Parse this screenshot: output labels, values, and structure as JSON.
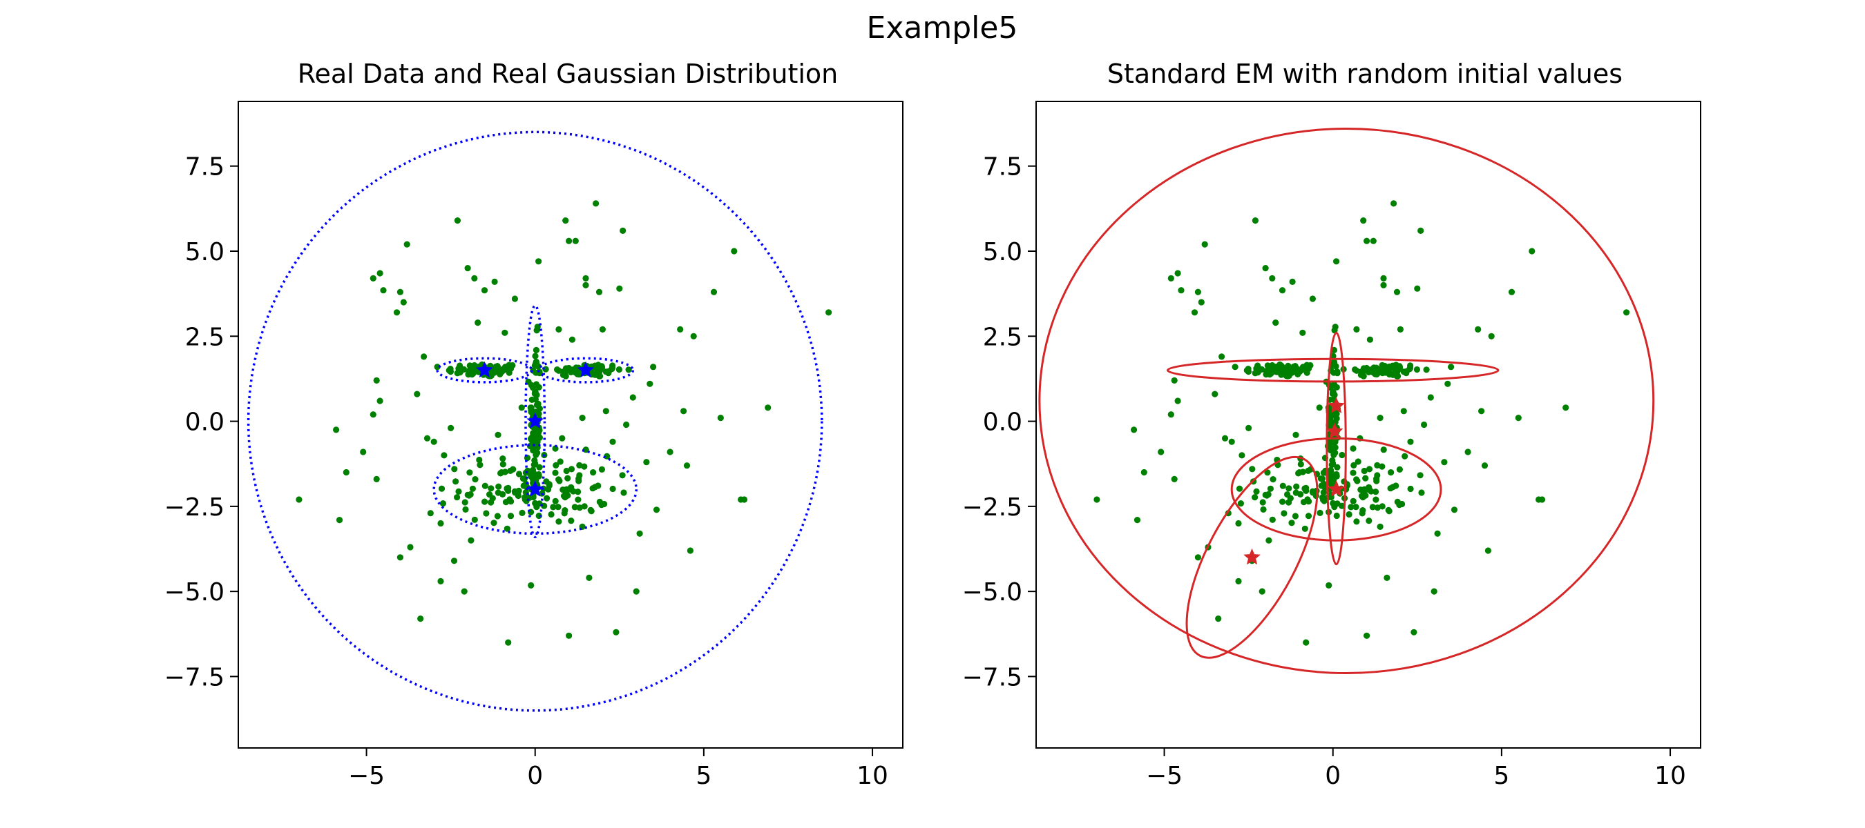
{
  "figure": {
    "title": "Example5"
  },
  "chart_data": [
    {
      "type": "scatter",
      "title": "Real Data and Real Gaussian Distribution",
      "xlabel": "",
      "ylabel": "",
      "xlim": [
        -8.8,
        10.9
      ],
      "ylim": [
        -9.6,
        9.4
      ],
      "xticks": [
        -5,
        0,
        5,
        10
      ],
      "xtick_labels": [
        "−5",
        "0",
        "5",
        "10"
      ],
      "yticks": [
        7.5,
        5.0,
        2.5,
        0.0,
        -2.5,
        -5.0,
        -7.5
      ],
      "ytick_labels": [
        "7.5",
        "5.0",
        "2.5",
        "0.0",
        "−2.5",
        "−5.0",
        "−7.5"
      ],
      "point_color": "#008000",
      "ellipse_style": "dotted",
      "ellipse_color": "#0000ff",
      "marker_color": "#0000ff",
      "ellipses": [
        {
          "cx": 0,
          "cy": 0,
          "rx": 8.5,
          "ry": 8.5,
          "angle": 0
        },
        {
          "cx": -1.5,
          "cy": 1.5,
          "rx": 1.4,
          "ry": 0.35,
          "angle": 0
        },
        {
          "cx": 1.5,
          "cy": 1.5,
          "rx": 1.4,
          "ry": 0.35,
          "angle": 0
        },
        {
          "cx": 0,
          "cy": 0,
          "rx": 0.28,
          "ry": 3.4,
          "angle": 0
        },
        {
          "cx": 0,
          "cy": -2,
          "rx": 3.0,
          "ry": 1.3,
          "angle": 0
        }
      ],
      "markers": [
        [
          -1.5,
          1.5
        ],
        [
          1.5,
          1.5
        ],
        [
          0,
          0
        ],
        [
          0,
          -2
        ]
      ]
    },
    {
      "type": "scatter",
      "title": "Standard EM with random initial values",
      "xlabel": "",
      "ylabel": "",
      "xlim": [
        -8.8,
        10.9
      ],
      "ylim": [
        -9.6,
        9.4
      ],
      "xticks": [
        -5,
        0,
        5,
        10
      ],
      "xtick_labels": [
        "−5",
        "0",
        "5",
        "10"
      ],
      "yticks": [
        7.5,
        5.0,
        2.5,
        0.0,
        -2.5,
        -5.0,
        -7.5
      ],
      "ytick_labels": [
        "7.5",
        "5.0",
        "2.5",
        "0.0",
        "−2.5",
        "−5.0",
        "−7.5"
      ],
      "point_color": "#008000",
      "ellipse_style": "solid",
      "ellipse_color": "#d62728",
      "marker_color": "#d62728",
      "ellipses": [
        {
          "cx": 0.4,
          "cy": 0.6,
          "rx": 9.1,
          "ry": 8.0,
          "angle": 0
        },
        {
          "cx": 0,
          "cy": 1.5,
          "rx": 4.9,
          "ry": 0.33,
          "angle": 0
        },
        {
          "cx": 0.1,
          "cy": -0.8,
          "rx": 0.28,
          "ry": 3.4,
          "angle": 0
        },
        {
          "cx": 0.1,
          "cy": -2.0,
          "rx": 3.1,
          "ry": 1.5,
          "angle": 0
        },
        {
          "cx": -2.4,
          "cy": -4.0,
          "rx": 3.3,
          "ry": 1.3,
          "angle": 62
        }
      ],
      "markers": [
        [
          0.1,
          0.45
        ],
        [
          0.05,
          -0.3
        ],
        [
          0.1,
          -2.0
        ],
        [
          -2.4,
          -4.0
        ]
      ]
    }
  ],
  "scatter": {
    "background": [
      [
        -4.8,
        4.2
      ],
      [
        -4.6,
        4.35
      ],
      [
        -4.5,
        3.85
      ],
      [
        -3.8,
        5.2
      ],
      [
        -4.0,
        3.8
      ],
      [
        -3.9,
        3.5
      ],
      [
        -4.1,
        3.2
      ],
      [
        -2.3,
        5.9
      ],
      [
        -2.0,
        4.5
      ],
      [
        -1.8,
        4.2
      ],
      [
        -1.5,
        3.85
      ],
      [
        -1.2,
        4.1
      ],
      [
        -0.6,
        3.6
      ],
      [
        0.1,
        4.7
      ],
      [
        0.9,
        5.9
      ],
      [
        1.0,
        5.3
      ],
      [
        1.2,
        5.3
      ],
      [
        1.8,
        6.4
      ],
      [
        1.5,
        4.2
      ],
      [
        1.5,
        4.0
      ],
      [
        1.9,
        3.8
      ],
      [
        2.5,
        3.9
      ],
      [
        2.6,
        5.6
      ],
      [
        5.9,
        5.0
      ],
      [
        5.3,
        3.8
      ],
      [
        4.3,
        2.7
      ],
      [
        4.7,
        2.5
      ],
      [
        3.5,
        1.6
      ],
      [
        3.4,
        1.1
      ],
      [
        2.9,
        0.7
      ],
      [
        4.4,
        0.3
      ],
      [
        5.5,
        0.1
      ],
      [
        6.9,
        0.4
      ],
      [
        8.7,
        3.2
      ],
      [
        -2.9,
        1.6
      ],
      [
        -3.3,
        1.9
      ],
      [
        -4.7,
        1.2
      ],
      [
        -4.6,
        0.6
      ],
      [
        -4.8,
        0.2
      ],
      [
        -5.1,
        -0.9
      ],
      [
        -5.9,
        -0.25
      ],
      [
        -5.6,
        -1.5
      ],
      [
        -7.0,
        -2.3
      ],
      [
        -5.8,
        -2.9
      ],
      [
        -4.7,
        -1.7
      ],
      [
        -3.2,
        -0.5
      ],
      [
        -3.0,
        -0.6
      ],
      [
        -2.7,
        -1.0
      ],
      [
        -3.1,
        -2.7
      ],
      [
        -2.4,
        -4.1
      ],
      [
        -2.1,
        -5.0
      ],
      [
        -3.7,
        -3.7
      ],
      [
        -4.0,
        -4.0
      ],
      [
        -2.8,
        -4.7
      ],
      [
        -3.4,
        -5.8
      ],
      [
        -0.8,
        -6.5
      ],
      [
        1.0,
        -6.3
      ],
      [
        1.6,
        -4.6
      ],
      [
        2.4,
        -6.2
      ],
      [
        3.0,
        -5.0
      ],
      [
        3.3,
        -1.2
      ],
      [
        3.6,
        -2.6
      ],
      [
        4.6,
        -3.8
      ],
      [
        6.1,
        -2.3
      ],
      [
        6.2,
        -2.3
      ],
      [
        4.0,
        -0.9
      ],
      [
        4.5,
        -1.3
      ],
      [
        2.7,
        -0.1
      ],
      [
        2.3,
        -0.6
      ],
      [
        -1.7,
        2.9
      ],
      [
        -0.9,
        2.6
      ],
      [
        0.7,
        2.7
      ],
      [
        1.1,
        2.4
      ],
      [
        2.0,
        2.7
      ],
      [
        -3.5,
        0.8
      ],
      [
        -2.5,
        -0.2
      ],
      [
        2.1,
        0.3
      ],
      [
        1.4,
        0.1
      ],
      [
        -1.1,
        -0.4
      ],
      [
        0.8,
        -0.5
      ],
      [
        -1.9,
        -3.5
      ],
      [
        1.4,
        -3.1
      ],
      [
        3.1,
        -3.3
      ],
      [
        -2.8,
        -3.0
      ],
      [
        0.6,
        -0.8
      ],
      [
        -0.4,
        0.4
      ]
    ]
  }
}
